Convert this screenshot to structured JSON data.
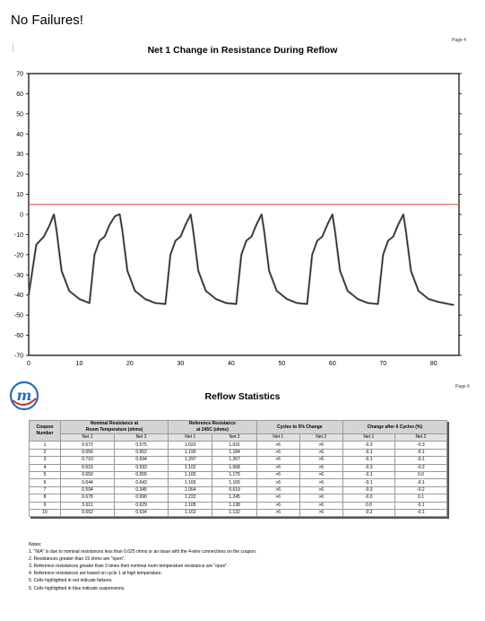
{
  "header": {
    "headline": "No Failures!",
    "page_top": "Page 4"
  },
  "chart_data": {
    "type": "line",
    "title": "Net 1 Change in Resistance During Reflow",
    "xlim": [
      0,
      85
    ],
    "ylim": [
      -70,
      70
    ],
    "xticks": [
      0,
      10,
      20,
      30,
      40,
      50,
      60,
      70,
      80
    ],
    "yticks": [
      70,
      60,
      50,
      40,
      30,
      20,
      10,
      0,
      -10,
      -20,
      -30,
      -40,
      -50,
      -60,
      -70
    ],
    "threshold": {
      "y": 5,
      "color": "#e8413c"
    },
    "cycle_peaks_x": [
      5,
      18,
      32,
      46,
      60,
      74
    ],
    "series": [
      {
        "x": [
          0,
          1.5,
          3,
          4.2,
          4.8,
          5,
          5.5,
          6.5,
          8,
          10,
          12,
          13,
          14,
          15,
          16,
          17,
          17.8,
          18,
          18.5,
          19.5,
          21,
          23,
          25,
          27,
          28,
          29,
          30,
          31,
          31.8,
          32,
          32.5,
          33.5,
          35,
          37,
          39,
          41,
          42,
          43,
          44,
          45,
          45.8,
          46,
          46.5,
          47.5,
          49,
          51,
          53,
          55,
          56,
          57,
          58,
          59,
          59.8,
          60,
          60.5,
          61.5,
          63,
          65,
          67,
          69,
          70,
          71,
          72,
          73,
          73.8,
          74,
          74.5,
          75.5,
          77,
          79,
          81,
          83,
          84
        ],
        "y": [
          -40,
          -15,
          -11,
          -5,
          -1,
          0,
          -8,
          -28,
          -38,
          -42,
          -44,
          -20,
          -13,
          -11,
          -5,
          -1,
          0,
          0,
          -8,
          -28,
          -38,
          -42,
          -44,
          -44.5,
          -20,
          -13,
          -11,
          -5,
          -1,
          0,
          -8,
          -28,
          -38,
          -42,
          -44,
          -44.5,
          -20,
          -13,
          -11,
          -5,
          -1,
          0,
          -8,
          -28,
          -38,
          -42,
          -44,
          -44.5,
          -20,
          -13,
          -11,
          -5,
          -1,
          0,
          -8,
          -28,
          -38,
          -42,
          -44,
          -44.5,
          -20,
          -13,
          -11,
          -5,
          -1,
          0,
          -8,
          -28,
          -38,
          -42,
          -43.5,
          -44.5,
          -45
        ]
      }
    ]
  },
  "stats_page": {
    "page_label": "Page 6",
    "title": "Reflow Statistics"
  },
  "table": {
    "headers": {
      "coupon": [
        "Coupon",
        "Number"
      ],
      "nominal": [
        "Nominal Resistance at",
        "Room Temperature (ohms)"
      ],
      "reference": [
        "Reference Resistance",
        "at 245C (ohms)"
      ],
      "cycles": "Cycles to 5% Change",
      "change": "Change after 6 Cycles (%)"
    },
    "sub": [
      "Net 1",
      "Net 2",
      "Net 1",
      "Net 2",
      "Net 1",
      "Net 2",
      "Net 1",
      "Net 2"
    ],
    "rows": [
      [
        "1",
        "0.572",
        "0.575",
        "1.023",
        "1.031",
        ">6",
        ">6",
        "-0.3",
        "-0.3"
      ],
      [
        "2",
        "0.656",
        "0.652",
        "1.190",
        "1.184",
        ">6",
        ">6",
        "-0.1",
        "-0.1"
      ],
      [
        "3",
        "0.710",
        "0.694",
        "1.297",
        "1.267",
        ">6",
        ">6",
        "-0.1",
        "-0.1"
      ],
      [
        "4",
        "0.615",
        "0.593",
        "1.102",
        "1.068",
        ">6",
        ">6",
        "-0.3",
        "-0.2"
      ],
      [
        "5",
        "0.650",
        "0.655",
        "1.165",
        "1.175",
        ">6",
        ">6",
        "-0.1",
        "0.0"
      ],
      [
        "6",
        "0.644",
        "0.643",
        "1.165",
        "1.165",
        ">6",
        ">6",
        "-0.1",
        "-0.1"
      ],
      [
        "7",
        "0.594",
        "0.345",
        "1.064",
        "0.619",
        ">6",
        ">6",
        "-0.3",
        "-0.2"
      ],
      [
        "8",
        "0.678",
        "0.690",
        "1.222",
        "1.245",
        ">6",
        ">6",
        "-0.0",
        "0.1"
      ],
      [
        "9",
        "0.611",
        "0.629",
        "1.105",
        "1.138",
        ">6",
        ">6",
        "0.0",
        "-0.1"
      ],
      [
        "10",
        "0.652",
        "0.634",
        "1.162",
        "1.132",
        ">6",
        ">6",
        "-0.2",
        "-0.1"
      ]
    ]
  },
  "notes": {
    "heading": "Notes:",
    "items": [
      "1.  \"N/A\" is due to nominal resistances less than 0.025 ohms or an issue with the 4-wire connections on the coupon.",
      "2.  Resistances greater than 15 ohms are \"open\".",
      "3.  Reference resistances greater than 3 times their nominal room temperature resistance are \"open\".",
      "4.  Reference resistances are based on cycle 1 at high temperature.",
      "5.  Cells highlighted in red indicate failures.",
      "6.  Cells highlighted in blue indicate suspensions."
    ]
  },
  "logo": {
    "letter": "m",
    "color": "#2a6fb5",
    "accent": "#c0392b"
  }
}
